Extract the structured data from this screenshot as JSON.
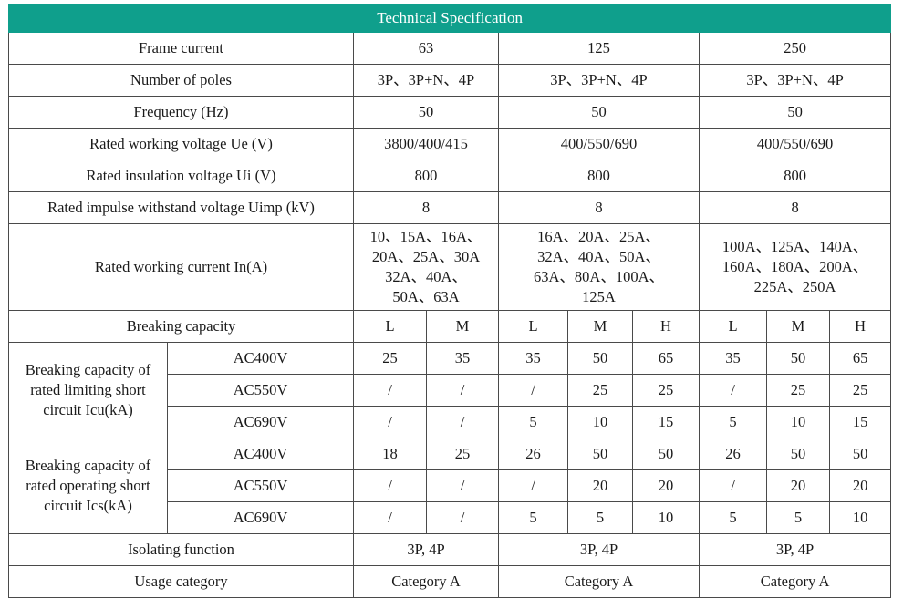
{
  "title": "Technical Specification",
  "rows": {
    "frame_current": {
      "label": "Frame current",
      "v1": "63",
      "v2": "125",
      "v3": "250"
    },
    "poles": {
      "label": "Number of poles",
      "v1": "3P、3P+N、4P",
      "v2": "3P、3P+N、4P",
      "v3": "3P、3P+N、4P"
    },
    "frequency": {
      "label": "Frequency (Hz)",
      "v1": "50",
      "v2": "50",
      "v3": "50"
    },
    "ue": {
      "label": "Rated working voltage Ue (V)",
      "v1": "3800/400/415",
      "v2": "400/550/690",
      "v3": "400/550/690"
    },
    "ui": {
      "label": "Rated insulation voltage Ui (V)",
      "v1": "800",
      "v2": "800",
      "v3": "800"
    },
    "uimp": {
      "label": "Rated impulse withstand voltage Uimp (kV)",
      "v1": "8",
      "v2": "8",
      "v3": "8"
    },
    "in": {
      "label": "Rated working current In(A)",
      "v1": [
        "10、15A、16A、",
        "20A、25A、30A",
        "32A、40A、",
        "50A、63A"
      ],
      "v2": [
        "16A、20A、25A、",
        "32A、40A、50A、",
        "63A、80A、100A、",
        "125A"
      ],
      "v3": [
        "100A、125A、140A、",
        "160A、180A、200A、",
        "225A、250A"
      ]
    },
    "breaking": {
      "label": "Breaking capacity",
      "c": [
        "L",
        "M",
        "L",
        "M",
        "H",
        "L",
        "M",
        "H"
      ]
    },
    "icu": {
      "label": [
        "Breaking capacity of",
        "rated limiting short",
        "circuit Icu(kA)"
      ],
      "rows": [
        {
          "v": "AC400V",
          "c": [
            "25",
            "35",
            "35",
            "50",
            "65",
            "35",
            "50",
            "65"
          ]
        },
        {
          "v": "AC550V",
          "c": [
            "/",
            "/",
            "/",
            "25",
            "25",
            "/",
            "25",
            "25"
          ]
        },
        {
          "v": "AC690V",
          "c": [
            "/",
            "/",
            "5",
            "10",
            "15",
            "5",
            "10",
            "15"
          ]
        }
      ]
    },
    "ics": {
      "label": [
        "Breaking capacity of",
        "rated operating short",
        "circuit Ics(kA)"
      ],
      "rows": [
        {
          "v": "AC400V",
          "c": [
            "18",
            "25",
            "26",
            "50",
            "50",
            "26",
            "50",
            "50"
          ]
        },
        {
          "v": "AC550V",
          "c": [
            "/",
            "/",
            "/",
            "20",
            "20",
            "/",
            "20",
            "20"
          ]
        },
        {
          "v": "AC690V",
          "c": [
            "/",
            "/",
            "5",
            "5",
            "10",
            "5",
            "5",
            "10"
          ]
        }
      ]
    },
    "isolating": {
      "label": "Isolating function",
      "v1": "3P, 4P",
      "v2": "3P, 4P",
      "v3": "3P, 4P"
    },
    "usage": {
      "label": "Usage category",
      "v1": "Category A",
      "v2": "Category A",
      "v3": "Category A"
    }
  }
}
